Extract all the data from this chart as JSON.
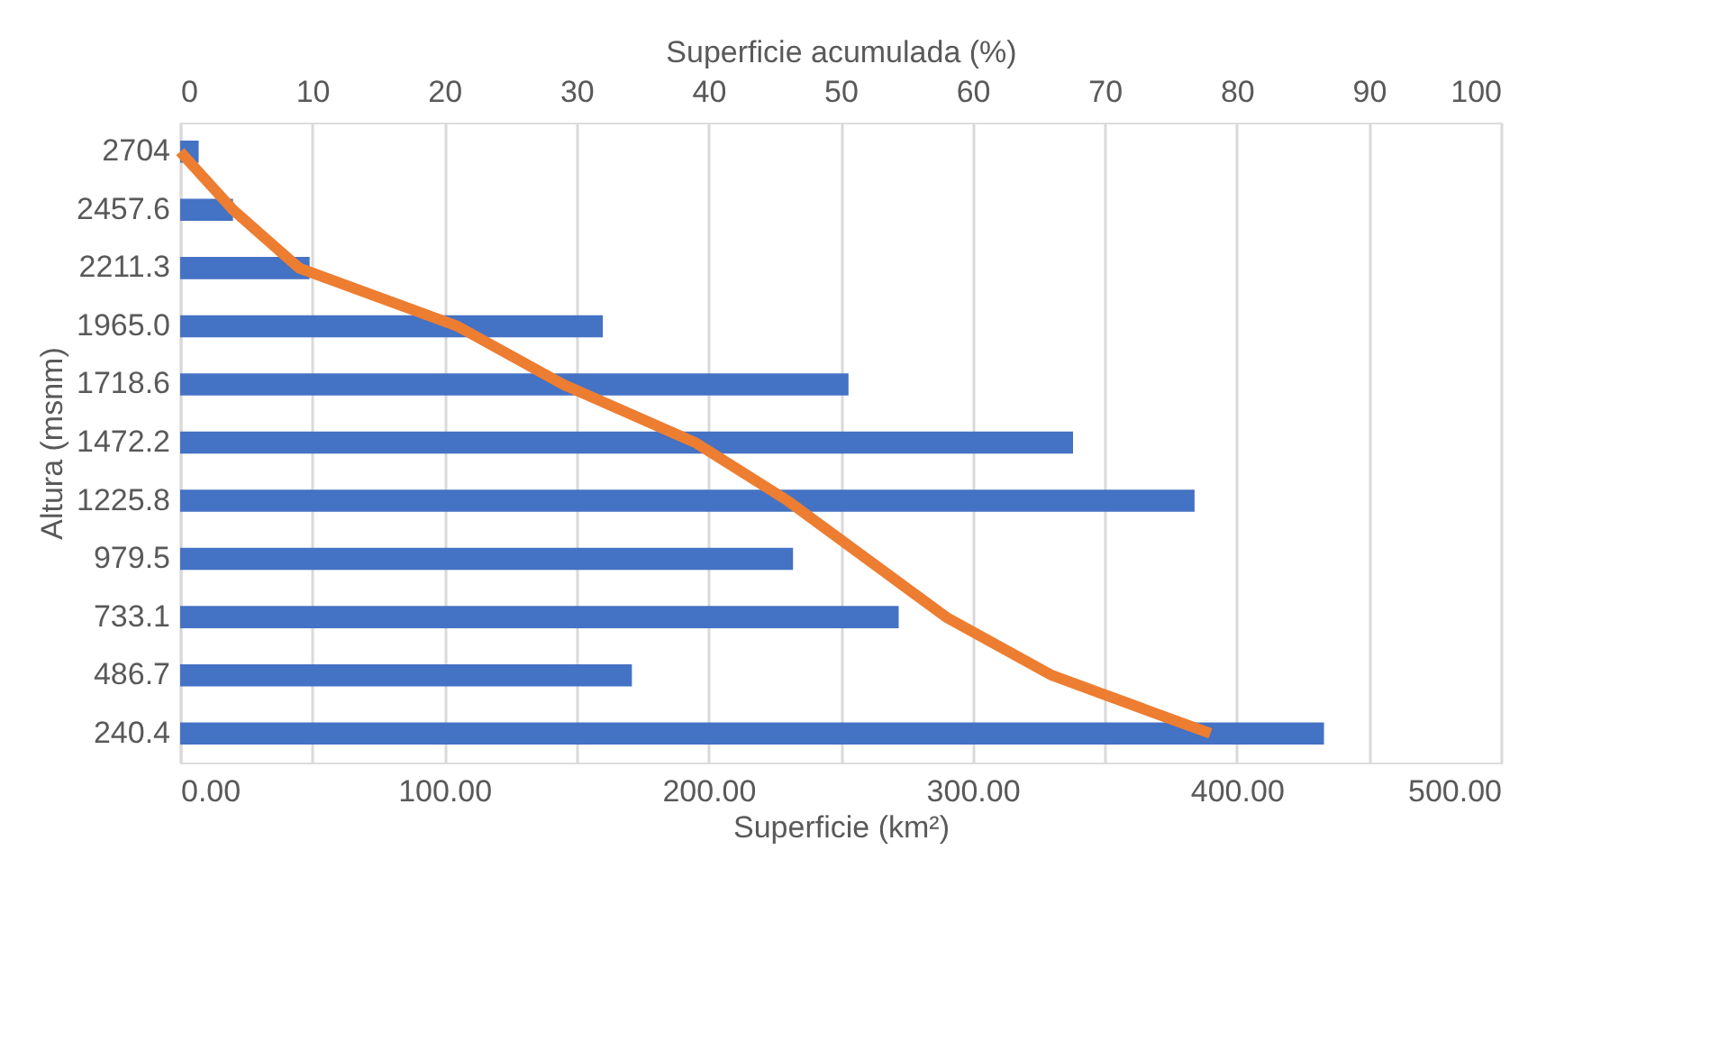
{
  "chart_data": {
    "type": "bar",
    "orientation": "horizontal",
    "xlabel": "Superficie (km²)",
    "x2label": "Superficie acumulada (%)",
    "ylabel": "Altura (msnm)",
    "categories": [
      "2704",
      "2457.6",
      "2211.3",
      "1965.0",
      "1718.6",
      "1472.2",
      "1225.8",
      "979.5",
      "733.1",
      "486.7",
      "240.4"
    ],
    "series": [
      {
        "color": "#4472c4",
        "values": [
          7,
          20,
          49,
          160,
          253,
          338,
          384,
          232,
          272,
          171,
          433
        ]
      },
      {
        "type": "line",
        "axis": "x2",
        "color": "#ed7d31",
        "values": [
          0,
          4,
          9,
          21,
          29,
          39,
          46,
          52,
          58,
          66,
          78
        ]
      }
    ],
    "xlim": [
      0,
      500
    ],
    "xticks": [
      {
        "value": 0,
        "label": "0.00"
      },
      {
        "value": 100,
        "label": "100.00"
      },
      {
        "value": 200,
        "label": "200.00"
      },
      {
        "value": 300,
        "label": "300.00"
      },
      {
        "value": 400,
        "label": "400.00"
      },
      {
        "value": 500,
        "label": "500.00"
      }
    ],
    "x2lim": [
      0,
      100
    ],
    "x2ticks": [
      0,
      10,
      20,
      30,
      40,
      50,
      60,
      70,
      80,
      90,
      100
    ],
    "grid": "x2"
  }
}
